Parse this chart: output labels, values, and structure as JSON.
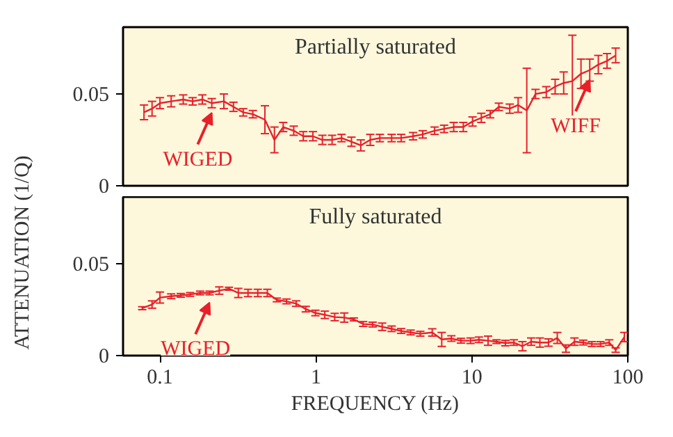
{
  "chart_data": [
    {
      "type": "line",
      "title": "Partially saturated",
      "ylabel": "ATTENUATION (1/Q)",
      "log": "x",
      "xlim": [
        0.058,
        100
      ],
      "ylim": [
        0,
        0.0864
      ],
      "yticks": [
        0,
        0.05
      ],
      "tick_labels": "y",
      "grid": false,
      "x": [
        0.079,
        0.089,
        0.1,
        0.118,
        0.141,
        0.162,
        0.187,
        0.215,
        0.257,
        0.296,
        0.342,
        0.394,
        0.471,
        0.542,
        0.617,
        0.721,
        0.83,
        0.957,
        1.1,
        1.27,
        1.46,
        1.69,
        1.94,
        2.23,
        2.57,
        3.06,
        3.52,
        4.2,
        4.84,
        5.77,
        6.64,
        7.65,
        8.81,
        10.1,
        11.5,
        13.1,
        14.9,
        17.5,
        19.8,
        22.5,
        25.6,
        30.0,
        34.2,
        38.8,
        44.1,
        50.1,
        57,
        64.7,
        73.6,
        83.6
      ],
      "series": [
        {
          "color": "#e8202a",
          "values": [
            0.04,
            0.042,
            0.045,
            0.046,
            0.047,
            0.046,
            0.047,
            0.045,
            0.046,
            0.043,
            0.04,
            0.039,
            0.036,
            0.025,
            0.032,
            0.03,
            0.027,
            0.027,
            0.025,
            0.025,
            0.026,
            0.024,
            0.022,
            0.025,
            0.026,
            0.026,
            0.026,
            0.027,
            0.028,
            0.03,
            0.031,
            0.032,
            0.032,
            0.035,
            0.037,
            0.039,
            0.043,
            0.042,
            0.044,
            0.041,
            0.05,
            0.051,
            0.054,
            0.056,
            0.057,
            0.061,
            0.063,
            0.066,
            0.068,
            0.071
          ],
          "errors": [
            0.004,
            0.004,
            0.003,
            0.003,
            0.0025,
            0.002,
            0.0025,
            0.0025,
            0.004,
            0.0025,
            0.002,
            0.002,
            0.0076,
            0.007,
            0.0025,
            0.0025,
            0.0025,
            0.0025,
            0.0025,
            0.0025,
            0.002,
            0.0025,
            0.003,
            0.003,
            0.002,
            0.002,
            0.002,
            0.002,
            0.002,
            0.002,
            0.002,
            0.0025,
            0.0025,
            0.0025,
            0.0025,
            0.002,
            0.002,
            0.0025,
            0.004,
            0.023,
            0.0025,
            0.003,
            0.004,
            0.006,
            0.025,
            0.008,
            0.006,
            0.005,
            0.004,
            0.004
          ]
        }
      ],
      "annotations": [
        {
          "text": "WIGED",
          "x": 0.215,
          "y": 0.045
        },
        {
          "text": "WIFF",
          "x": 57,
          "y": 0.063
        }
      ]
    },
    {
      "type": "line",
      "title": "Fully saturated",
      "xlabel": "FREQUENCY (Hz)",
      "log": "x",
      "xlim": [
        0.058,
        100
      ],
      "xticks": [
        0.1,
        1,
        10,
        100
      ],
      "ylim": [
        0,
        0.0864
      ],
      "yticks": [
        0,
        0.05
      ],
      "grid": false,
      "x": [
        0.077,
        0.089,
        0.1,
        0.118,
        0.136,
        0.156,
        0.181,
        0.208,
        0.24,
        0.277,
        0.318,
        0.367,
        0.424,
        0.488,
        0.562,
        0.648,
        0.747,
        0.861,
        0.993,
        1.14,
        1.32,
        1.52,
        1.75,
        2.01,
        2.31,
        2.66,
        3.06,
        3.52,
        4.05,
        4.67,
        5.57,
        6.41,
        7.39,
        8.51,
        9.8,
        11.1,
        12.7,
        14.4,
        16.4,
        18.6,
        21.1,
        24,
        27.3,
        31,
        35.3,
        40.1,
        45.5,
        51.8,
        58.8,
        66.8,
        76,
        83.6,
        95
      ],
      "series": [
        {
          "color": "#e8202a",
          "values": [
            0.0258,
            0.0278,
            0.0316,
            0.0323,
            0.0328,
            0.0333,
            0.0341,
            0.0341,
            0.0354,
            0.0364,
            0.0341,
            0.0341,
            0.0341,
            0.0341,
            0.0303,
            0.0295,
            0.0283,
            0.0253,
            0.0232,
            0.0222,
            0.021,
            0.0207,
            0.0197,
            0.0172,
            0.0169,
            0.0157,
            0.0146,
            0.0134,
            0.0126,
            0.0119,
            0.0126,
            0.0088,
            0.0093,
            0.0081,
            0.0081,
            0.0086,
            0.0081,
            0.0076,
            0.0068,
            0.0071,
            0.0051,
            0.0076,
            0.0071,
            0.0071,
            0.0096,
            0.0038,
            0.0076,
            0.0071,
            0.0063,
            0.0063,
            0.0071,
            0.003,
            0.0101
          ],
          "errors": [
            0.0008,
            0.002,
            0.003,
            0.0013,
            0.001,
            0.001,
            0.001,
            0.001,
            0.002,
            0.0008,
            0.0025,
            0.002,
            0.002,
            0.002,
            0.001,
            0.0013,
            0.0015,
            0.0015,
            0.0015,
            0.002,
            0.002,
            0.0025,
            0.0008,
            0.0013,
            0.0013,
            0.002,
            0.0015,
            0.0013,
            0.0013,
            0.0013,
            0.002,
            0.0038,
            0.0015,
            0.0013,
            0.0015,
            0.0015,
            0.0025,
            0.001,
            0.0015,
            0.0015,
            0.0025,
            0.002,
            0.0025,
            0.002,
            0.003,
            0.002,
            0.002,
            0.0013,
            0.0013,
            0.0013,
            0.0015,
            0.0012,
            0.0025
          ]
        }
      ],
      "annotations": [
        {
          "text": "WIGED",
          "x": 0.208,
          "y": 0.0341
        }
      ]
    }
  ]
}
